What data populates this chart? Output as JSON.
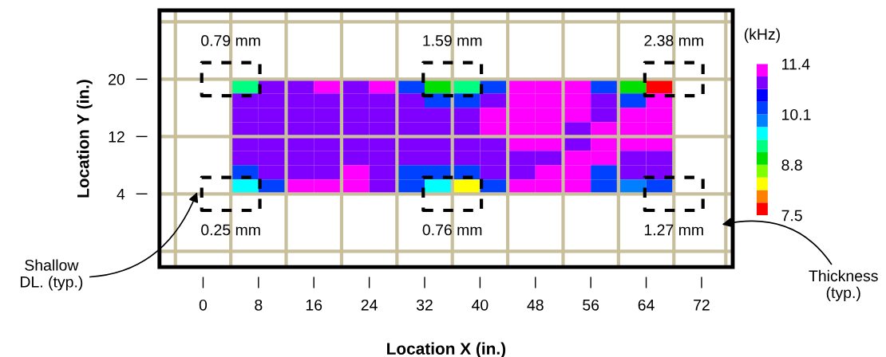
{
  "chart_data": {
    "type": "heatmap",
    "xlabel": "Location X (in.)",
    "ylabel": "Location Y (in.)",
    "clabel": "(kHz)",
    "xlim": [
      -6.3,
      76.5
    ],
    "ylim": [
      -6.2,
      29.6
    ],
    "xticks": [
      0,
      8,
      16,
      24,
      32,
      40,
      48,
      56,
      64,
      72
    ],
    "yticks": [
      4,
      12,
      20
    ],
    "clim": [
      7.5,
      11.4
    ],
    "cticks": [
      7.5,
      8.8,
      10.1,
      11.4
    ],
    "colors": [
      "#ff0000",
      "#ff8000",
      "#ffff00",
      "#80ff00",
      "#00e000",
      "#00ff80",
      "#00ffff",
      "#0080ff",
      "#0040ff",
      "#0000ff",
      "#8000ff",
      "#ff00ff"
    ],
    "grid": false,
    "x": [
      6,
      10,
      14,
      18,
      22,
      26,
      30,
      34,
      38,
      42,
      46,
      50,
      54,
      58,
      62,
      66
    ],
    "y": [
      19,
      17,
      15,
      13,
      11,
      9,
      7,
      5
    ],
    "cells": [
      [
        9.2,
        11.0,
        11.0,
        11.3,
        11.0,
        11.3,
        10.4,
        8.8,
        9.4,
        10.4,
        11.3,
        11.3,
        11.3,
        10.4,
        9.0,
        7.7
      ],
      [
        11.0,
        11.0,
        11.0,
        11.0,
        11.0,
        11.0,
        11.0,
        10.4,
        10.4,
        11.0,
        11.3,
        11.3,
        11.3,
        11.0,
        10.4,
        11.3
      ],
      [
        11.0,
        11.0,
        11.0,
        11.0,
        11.0,
        11.0,
        11.0,
        11.0,
        11.0,
        11.3,
        11.3,
        11.3,
        11.3,
        11.0,
        11.3,
        11.3
      ],
      [
        11.0,
        11.0,
        11.0,
        11.0,
        11.0,
        11.0,
        11.0,
        11.0,
        11.0,
        11.3,
        11.3,
        11.3,
        11.0,
        11.3,
        11.3,
        11.3
      ],
      [
        11.0,
        11.0,
        11.0,
        11.0,
        11.0,
        11.0,
        11.0,
        11.0,
        11.0,
        11.0,
        11.3,
        11.3,
        11.0,
        11.3,
        11.3,
        11.3
      ],
      [
        11.0,
        11.0,
        11.0,
        11.0,
        11.0,
        11.0,
        11.0,
        11.0,
        11.0,
        11.0,
        11.0,
        11.0,
        11.3,
        11.3,
        11.0,
        11.0
      ],
      [
        10.4,
        11.0,
        11.0,
        11.0,
        11.3,
        11.0,
        10.4,
        10.4,
        10.4,
        11.0,
        11.0,
        11.3,
        11.3,
        10.4,
        11.0,
        11.0
      ],
      [
        9.6,
        10.4,
        11.3,
        11.3,
        11.3,
        11.0,
        10.4,
        9.6,
        8.3,
        10.4,
        11.3,
        11.3,
        11.3,
        10.4,
        10.0,
        10.4
      ]
    ],
    "ref_lines": [
      {
        "axis": "x",
        "value": -4,
        "color": "#c8bf9c"
      },
      {
        "axis": "x",
        "value": 4,
        "color": "#c8bf9c"
      },
      {
        "axis": "x",
        "value": 12,
        "color": "#c8bf9c"
      },
      {
        "axis": "x",
        "value": 20,
        "color": "#c8bf9c"
      },
      {
        "axis": "x",
        "value": 28,
        "color": "#c8bf9c"
      },
      {
        "axis": "x",
        "value": 36,
        "color": "#c8bf9c"
      },
      {
        "axis": "x",
        "value": 44,
        "color": "#c8bf9c"
      },
      {
        "axis": "x",
        "value": 52,
        "color": "#c8bf9c"
      },
      {
        "axis": "x",
        "value": 60,
        "color": "#c8bf9c"
      },
      {
        "axis": "x",
        "value": 68,
        "color": "#c8bf9c"
      },
      {
        "axis": "x",
        "value": 75.5,
        "color": "#c8bf9c"
      },
      {
        "axis": "y",
        "value": -4,
        "color": "#c8bf9c"
      },
      {
        "axis": "y",
        "value": 4,
        "color": "#c8bf9c"
      },
      {
        "axis": "y",
        "value": 12,
        "color": "#c8bf9c"
      },
      {
        "axis": "y",
        "value": 20,
        "color": "#c8bf9c"
      },
      {
        "axis": "y",
        "value": 28,
        "color": "#c8bf9c"
      }
    ],
    "annotations": [
      {
        "text": "0.79 mm",
        "x": 4,
        "y": 20
      },
      {
        "text": "1.59 mm",
        "x": 36,
        "y": 20
      },
      {
        "text": "2.38 mm",
        "x": 68,
        "y": 20
      },
      {
        "text": "0.25 mm",
        "x": 4,
        "y": 4
      },
      {
        "text": "0.76 mm",
        "x": 36,
        "y": 4
      },
      {
        "text": "1.27 mm",
        "x": 68,
        "y": 4
      },
      {
        "text": "Shallow\nDL. (typ.)",
        "x": -0.8,
        "y": 4.4
      },
      {
        "text": "Thickness\n(typ.)",
        "x": 74.8,
        "y": -0.3
      }
    ]
  }
}
